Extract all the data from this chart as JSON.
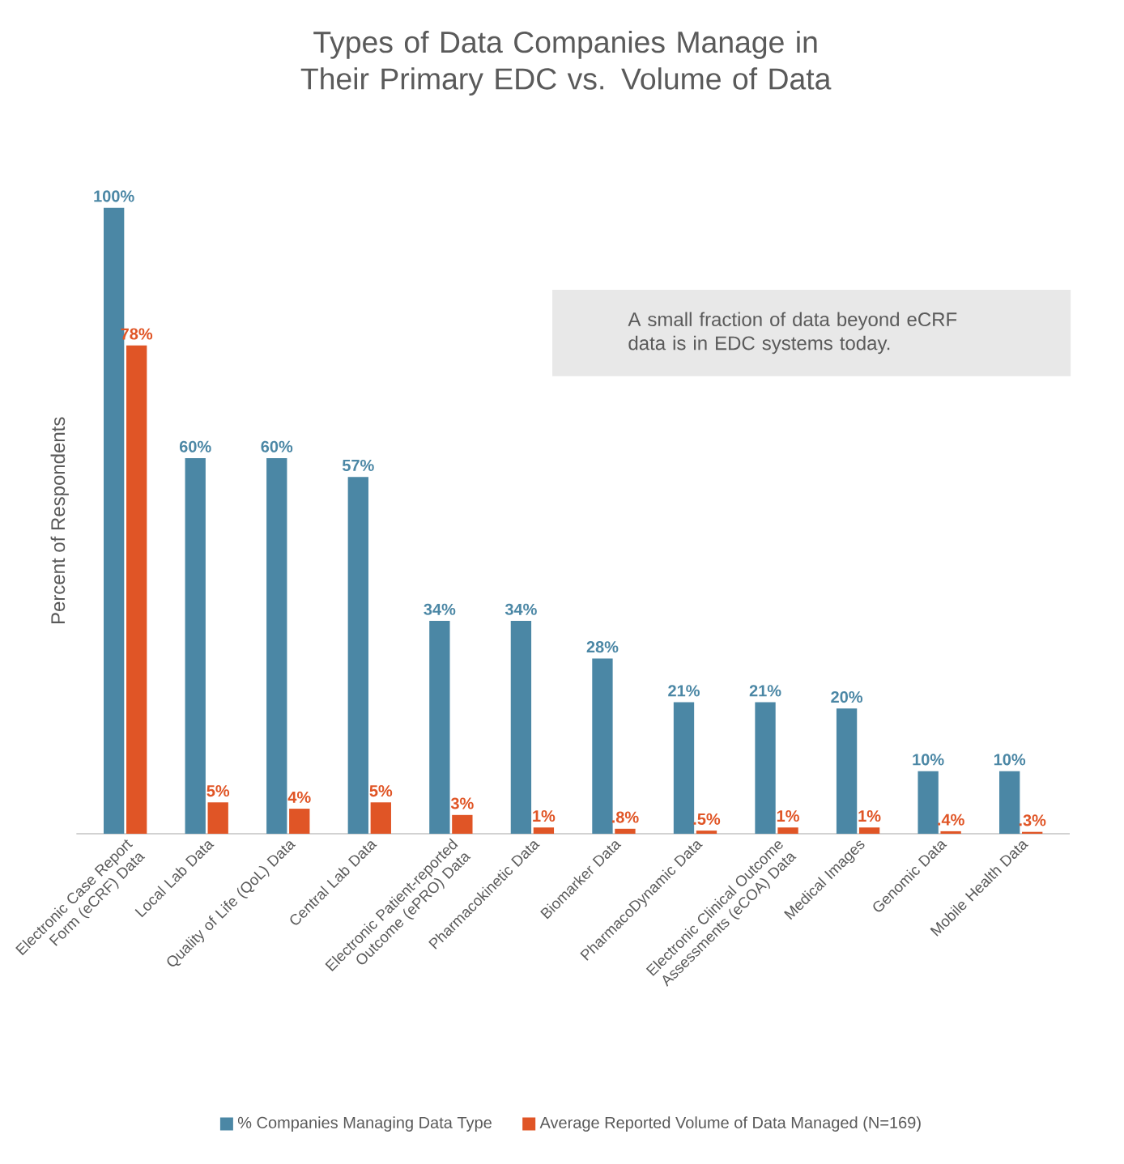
{
  "chart_data": {
    "type": "bar",
    "title": "Types of Data Companies Manage in Their Primary EDC vs. Volume of Data",
    "ylabel": "Percent of Respondents",
    "categories": [
      "Electronic Case Report Form (eCRF) Data",
      "Local Lab Data",
      "Quality of Life (QoL) Data",
      "Central Lab Data",
      "Electronic Patient-reported Outcome (ePRO) Data",
      "Pharmacokinetic Data",
      "Biomarker Data",
      "PharmacoDynamic Data",
      "Electronic Clinical Outcome Assessments (eCOA) Data",
      "Medical Images",
      "Genomic Data",
      "Mobile Health Data"
    ],
    "series": [
      {
        "name": "% Companies Managing Data Type",
        "color": "#4b87a5",
        "values": [
          100,
          60,
          60,
          57,
          34,
          34,
          28,
          21,
          21,
          20,
          10,
          10
        ],
        "value_labels": [
          "100%",
          "60%",
          "60%",
          "57%",
          "34%",
          "34%",
          "28%",
          "21%",
          "21%",
          "20%",
          "10%",
          "10%"
        ]
      },
      {
        "name": "Average Reported Volume of Data Managed (N=169)",
        "color": "#e05526",
        "values": [
          78,
          5,
          4,
          5,
          3,
          1,
          0.8,
          0.5,
          1,
          1,
          0.4,
          0.3
        ],
        "value_labels": [
          "78%",
          "5%",
          "4%",
          "5%",
          "3%",
          "1%",
          ".8%",
          ".5%",
          "1%",
          "1%",
          ".4%",
          ".3%"
        ]
      }
    ],
    "annotations": [
      "A small fraction of data beyond eCRF data is in EDC systems today."
    ],
    "legend": "bottom"
  }
}
